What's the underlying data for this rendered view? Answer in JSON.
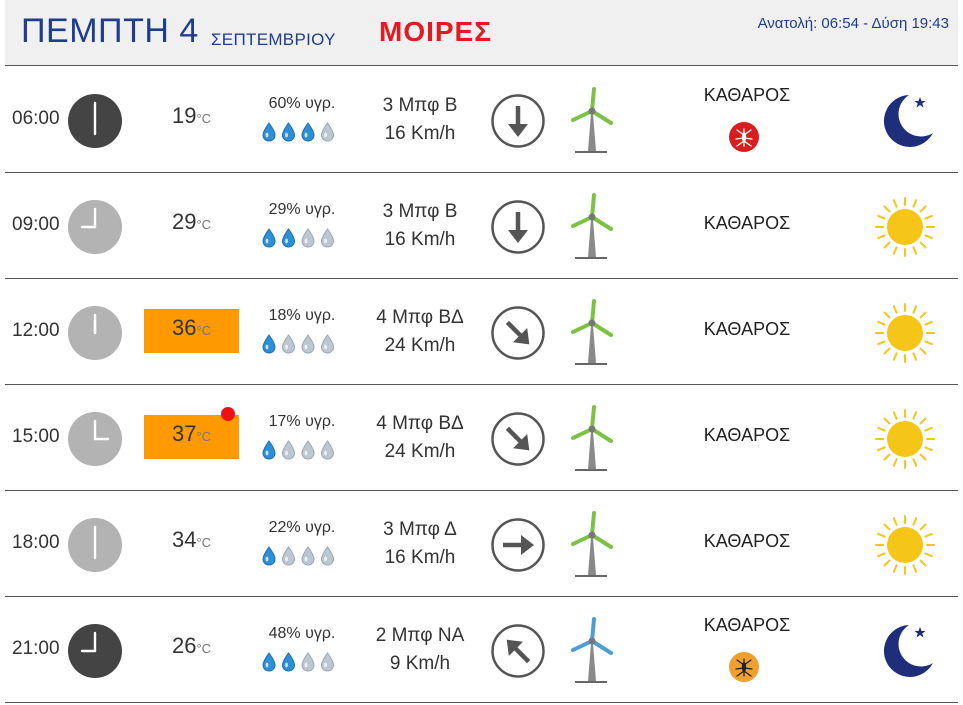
{
  "header": {
    "day": "ΠΕΜΠΤΗ 4",
    "month": "ΣΕΠΤΕΜΒΡΙΟΥ",
    "city": "ΜΟΙΡΕΣ",
    "sun": "Ανατολή: 06:54  - Δύση 19:43"
  },
  "colors": {
    "brand_blue": "#1d3e8c",
    "brand_red": "#e01b22",
    "hot": "#ff9900",
    "turbine_green": "#7cc242",
    "turbine_blue": "#4a9fd8"
  },
  "temp_unit": "°C",
  "rows": [
    {
      "time": "06:00",
      "clock_style": "dark",
      "temp": "19",
      "hot": false,
      "alert_dot": false,
      "humidity": "60% υγρ.",
      "drops_filled": 3,
      "wind_bft": "3 Μπφ Β",
      "wind_speed": "16 Km/h",
      "direction_icon": "arrow-down-icon",
      "turbine_color": "green",
      "condition": "ΚΑΘΑΡΟΣ",
      "mosquito": "red",
      "weather_icon": "moon-icon"
    },
    {
      "time": "09:00",
      "clock_style": "light",
      "temp": "29",
      "hot": false,
      "alert_dot": false,
      "humidity": "29% υγρ.",
      "drops_filled": 2,
      "wind_bft": "3 Μπφ Β",
      "wind_speed": "16 Km/h",
      "direction_icon": "arrow-down-icon",
      "turbine_color": "green",
      "condition": "ΚΑΘΑΡΟΣ",
      "mosquito": "",
      "weather_icon": "sun-icon"
    },
    {
      "time": "12:00",
      "clock_style": "light",
      "temp": "36",
      "hot": true,
      "alert_dot": false,
      "humidity": "18% υγρ.",
      "drops_filled": 1,
      "wind_bft": "4 Μπφ ΒΔ",
      "wind_speed": "24 Km/h",
      "direction_icon": "arrow-down-right-icon",
      "turbine_color": "green",
      "condition": "ΚΑΘΑΡΟΣ",
      "mosquito": "",
      "weather_icon": "sun-icon"
    },
    {
      "time": "15:00",
      "clock_style": "light",
      "temp": "37",
      "hot": true,
      "alert_dot": true,
      "humidity": "17% υγρ.",
      "drops_filled": 1,
      "wind_bft": "4 Μπφ ΒΔ",
      "wind_speed": "24 Km/h",
      "direction_icon": "arrow-down-right-icon",
      "turbine_color": "green",
      "condition": "ΚΑΘΑΡΟΣ",
      "mosquito": "",
      "weather_icon": "sun-icon"
    },
    {
      "time": "18:00",
      "clock_style": "light",
      "temp": "34",
      "hot": false,
      "alert_dot": false,
      "humidity": "22% υγρ.",
      "drops_filled": 1,
      "wind_bft": "3 Μπφ Δ",
      "wind_speed": "16 Km/h",
      "direction_icon": "arrow-right-icon",
      "turbine_color": "green",
      "condition": "ΚΑΘΑΡΟΣ",
      "mosquito": "",
      "weather_icon": "sun-icon"
    },
    {
      "time": "21:00",
      "clock_style": "dark",
      "temp": "26",
      "hot": false,
      "alert_dot": false,
      "humidity": "48% υγρ.",
      "drops_filled": 2,
      "wind_bft": "2 Μπφ ΝΑ",
      "wind_speed": "9 Km/h",
      "direction_icon": "arrow-up-left-icon",
      "turbine_color": "blue",
      "condition": "ΚΑΘΑΡΟΣ",
      "mosquito": "orange",
      "weather_icon": "moon-icon"
    }
  ]
}
